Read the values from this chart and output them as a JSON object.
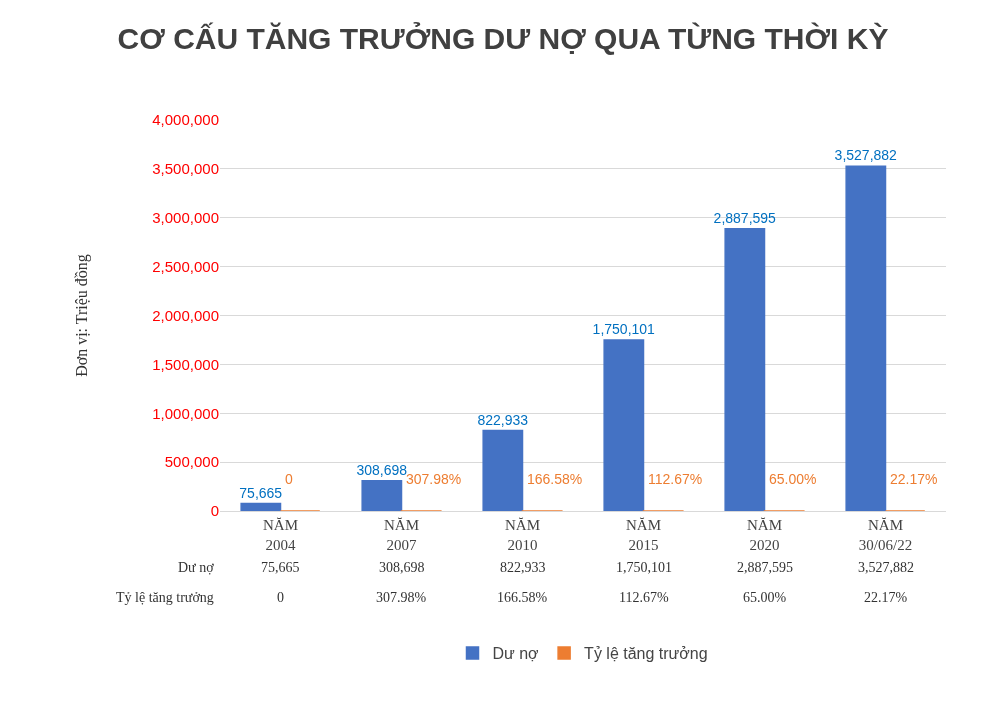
{
  "chart_data": {
    "type": "bar",
    "title": "CƠ CẤU TĂNG TRƯỞNG DƯ NỢ QUA TỪNG THỜI KỲ",
    "ylabel": "Đơn vị: Triệu đồng",
    "categories": [
      "NĂM 2004",
      "NĂM 2007",
      "NĂM 2010",
      "NĂM 2015",
      "NĂM 2020",
      "NĂM 30/06/22"
    ],
    "series": [
      {
        "name": "Dư nợ",
        "color": "#4472c4",
        "values": [
          75665,
          308698,
          822933,
          1750101,
          2887595,
          3527882
        ],
        "value_labels": [
          "75,665",
          "308,698",
          "822,933",
          "1,750,101",
          "2,887,595",
          "3,527,882"
        ]
      },
      {
        "name": "Tỷ lệ tăng trưởng",
        "color": "#ed7d31",
        "values": [
          0,
          307.98,
          166.58,
          112.67,
          65.0,
          22.17
        ],
        "value_labels": [
          "0",
          "307.98%",
          "166.58%",
          "112.67%",
          "65.00%",
          "22.17%"
        ]
      }
    ],
    "ylim": [
      0,
      4000000
    ],
    "yticks": [
      {
        "value": 0,
        "label": "0"
      },
      {
        "value": 500000,
        "label": "500,000"
      },
      {
        "value": 1000000,
        "label": "1,000,000"
      },
      {
        "value": 1500000,
        "label": "1,500,000"
      },
      {
        "value": 2000000,
        "label": "2,000,000"
      },
      {
        "value": 2500000,
        "label": "2,500,000"
      },
      {
        "value": 3000000,
        "label": "3,000,000"
      },
      {
        "value": 3500000,
        "label": "3,500,000"
      },
      {
        "value": 4000000,
        "label": "4,000,000"
      }
    ],
    "grid": "y",
    "legend": "bottom"
  }
}
